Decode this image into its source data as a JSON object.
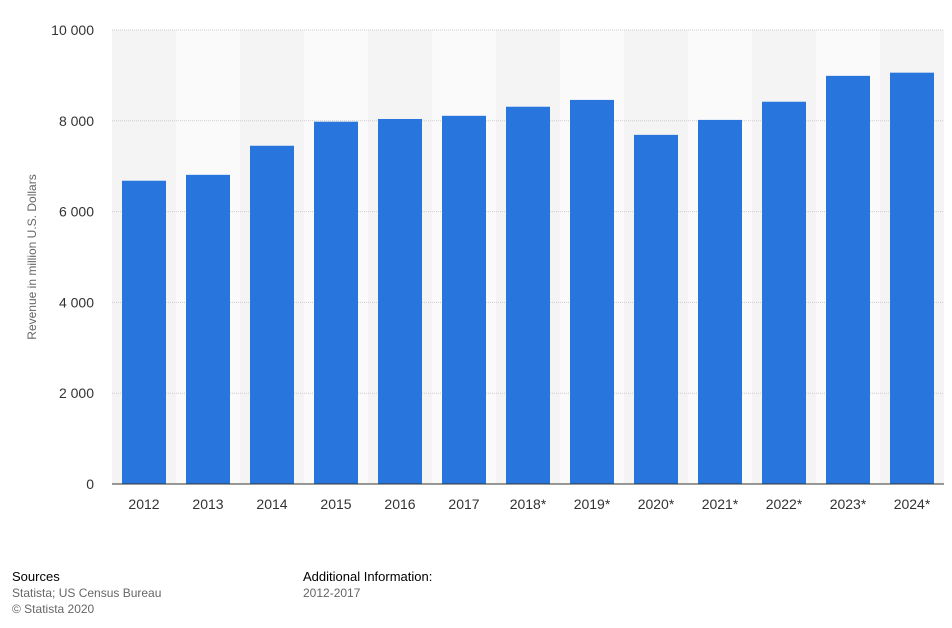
{
  "chart_data": {
    "type": "bar",
    "title": "",
    "xlabel": "",
    "ylabel": "Revenue in million U.S. Dollars",
    "categories": [
      "2012",
      "2013",
      "2014",
      "2015",
      "2016",
      "2017",
      "2018*",
      "2019*",
      "2020*",
      "2021*",
      "2022*",
      "2023*",
      "2024*"
    ],
    "values": [
      6680,
      6810,
      7450,
      7980,
      8040,
      8110,
      8310,
      8460,
      7690,
      8020,
      8420,
      8990,
      9060
    ],
    "ylim": [
      0,
      10000
    ],
    "yticks": [
      0,
      2000,
      4000,
      6000,
      8000,
      10000
    ],
    "ytick_labels": [
      "0",
      "2 000",
      "4 000",
      "6 000",
      "8 000",
      "10 000"
    ],
    "grid": true,
    "bar_color": "#2876dd"
  },
  "footer": {
    "sources_title": "Sources",
    "sources_text": "Statista; US Census Bureau",
    "copyright": "© Statista 2020",
    "additional_title": "Additional Information:",
    "additional_text": "2012-2017"
  }
}
